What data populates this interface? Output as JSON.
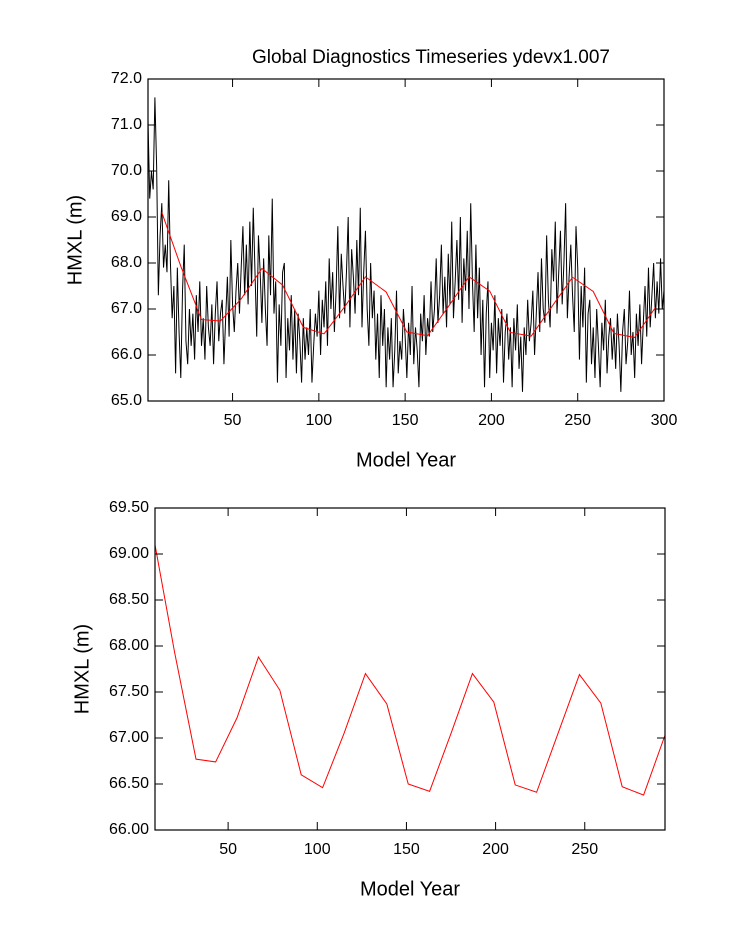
{
  "chart_data": [
    {
      "type": "line",
      "title": "Global Diagnostics Timeseries ydevx1.007",
      "xlabel": "Model Year",
      "ylabel": "HMXL (m)",
      "xlim": [
        1,
        300
      ],
      "xticks": [
        50,
        100,
        150,
        200,
        250,
        300
      ],
      "ylim": [
        65,
        72
      ],
      "yticks": [
        {
          "value": 65,
          "label": "65.0"
        },
        {
          "value": 66,
          "label": "66.0"
        },
        {
          "value": 67,
          "label": "67.0"
        },
        {
          "value": 68,
          "label": "68.0"
        },
        {
          "value": 69,
          "label": "69.0"
        },
        {
          "value": 70,
          "label": "70.0"
        },
        {
          "value": 71,
          "label": "71.0"
        },
        {
          "value": 72,
          "label": "72.0"
        }
      ],
      "x": [
        1,
        2,
        3,
        4,
        5,
        6,
        7,
        8,
        9,
        10,
        11,
        12,
        13,
        14,
        15,
        16,
        17,
        18,
        19,
        20,
        21,
        22,
        23,
        24,
        25,
        26,
        27,
        28,
        29,
        30,
        31,
        32,
        33,
        34,
        35,
        36,
        37,
        38,
        39,
        40,
        41,
        42,
        43,
        44,
        45,
        46,
        47,
        48,
        49,
        50,
        51,
        52,
        53,
        54,
        55,
        56,
        57,
        58,
        59,
        60,
        61,
        62,
        63,
        64,
        65,
        66,
        67,
        68,
        69,
        70,
        71,
        72,
        73,
        74,
        75,
        76,
        77,
        78,
        79,
        80,
        81,
        82,
        83,
        84,
        85,
        86,
        87,
        88,
        89,
        90,
        91,
        92,
        93,
        94,
        95,
        96,
        97,
        98,
        99,
        100,
        101,
        102,
        103,
        104,
        105,
        106,
        107,
        108,
        109,
        110,
        111,
        112,
        113,
        114,
        115,
        116,
        117,
        118,
        119,
        120,
        121,
        122,
        123,
        124,
        125,
        126,
        127,
        128,
        129,
        130,
        131,
        132,
        133,
        134,
        135,
        136,
        137,
        138,
        139,
        140,
        141,
        142,
        143,
        144,
        145,
        146,
        147,
        148,
        149,
        150,
        151,
        152,
        153,
        154,
        155,
        156,
        157,
        158,
        159,
        160,
        161,
        162,
        163,
        164,
        165,
        166,
        167,
        168,
        169,
        170,
        171,
        172,
        173,
        174,
        175,
        176,
        177,
        178,
        179,
        180,
        181,
        182,
        183,
        184,
        185,
        186,
        187,
        188,
        189,
        190,
        191,
        192,
        193,
        194,
        195,
        196,
        197,
        198,
        199,
        200,
        201,
        202,
        203,
        204,
        205,
        206,
        207,
        208,
        209,
        210,
        211,
        212,
        213,
        214,
        215,
        216,
        217,
        218,
        219,
        220,
        221,
        222,
        223,
        224,
        225,
        226,
        227,
        228,
        229,
        230,
        231,
        232,
        233,
        234,
        235,
        236,
        237,
        238,
        239,
        240,
        241,
        242,
        243,
        244,
        245,
        246,
        247,
        248,
        249,
        250,
        251,
        252,
        253,
        254,
        255,
        256,
        257,
        258,
        259,
        260,
        261,
        262,
        263,
        264,
        265,
        266,
        267,
        268,
        269,
        270,
        271,
        272,
        273,
        274,
        275,
        276,
        277,
        278,
        279,
        280,
        281,
        282,
        283,
        284,
        285,
        286,
        287,
        288,
        289,
        290,
        291,
        292,
        293,
        294,
        295,
        296,
        297,
        298,
        299,
        300
      ],
      "series": [
        {
          "color": "#000000",
          "values": [
            71.1,
            69.4,
            70.0,
            69.6,
            71.6,
            70.1,
            67.3,
            68.6,
            69.3,
            67.9,
            68.4,
            67.8,
            69.8,
            68.0,
            66.8,
            67.5,
            65.6,
            67.9,
            66.5,
            65.5,
            67.4,
            68.4,
            66.3,
            65.8,
            67.0,
            66.2,
            66.9,
            65.9,
            67.3,
            66.5,
            67.6,
            66.2,
            66.8,
            65.9,
            67.5,
            66.6,
            66.2,
            67.1,
            65.8,
            66.9,
            67.6,
            66.3,
            66.9,
            67.2,
            65.8,
            66.8,
            67.7,
            66.4,
            68.5,
            67.1,
            66.5,
            67.4,
            68.0,
            66.9,
            67.9,
            68.8,
            67.3,
            68.4,
            67.1,
            68.9,
            67.5,
            69.2,
            67.8,
            66.4,
            68.6,
            67.8,
            66.7,
            68.1,
            67.0,
            66.2,
            68.6,
            67.3,
            69.4,
            66.9,
            67.6,
            65.4,
            67.1,
            66.2,
            67.8,
            68.0,
            65.5,
            66.8,
            66.1,
            67.3,
            65.9,
            67.0,
            65.6,
            66.9,
            66.3,
            65.4,
            66.8,
            65.9,
            66.6,
            66.0,
            67.0,
            65.4,
            66.2,
            66.9,
            66.4,
            67.4,
            66.0,
            67.2,
            66.6,
            67.6,
            66.2,
            68.1,
            67.0,
            67.8,
            66.5,
            67.4,
            68.8,
            66.8,
            68.2,
            67.5,
            66.9,
            67.8,
            69.0,
            66.6,
            68.3,
            67.7,
            66.9,
            68.5,
            67.3,
            69.2,
            66.6,
            67.8,
            68.7,
            67.0,
            66.2,
            68.0,
            66.8,
            67.4,
            65.9,
            66.9,
            65.5,
            67.3,
            66.2,
            67.0,
            65.3,
            66.6,
            65.9,
            66.8,
            65.3,
            66.1,
            67.4,
            65.6,
            66.3,
            65.9,
            67.0,
            66.4,
            65.5,
            66.7,
            66.0,
            67.5,
            65.8,
            66.6,
            66.1,
            65.3,
            66.9,
            66.3,
            67.3,
            66.0,
            66.8,
            66.4,
            67.6,
            66.5,
            67.0,
            68.1,
            66.7,
            67.3,
            68.4,
            66.9,
            67.7,
            66.6,
            68.2,
            67.1,
            68.9,
            66.8,
            67.6,
            68.5,
            67.2,
            69.0,
            66.7,
            68.1,
            67.4,
            68.7,
            67.0,
            69.3,
            67.6,
            66.5,
            68.4,
            66.8,
            67.9,
            66.0,
            67.2,
            65.3,
            66.9,
            67.6,
            65.5,
            66.7,
            66.1,
            67.3,
            65.6,
            66.8,
            66.2,
            67.0,
            65.4,
            66.5,
            66.9,
            65.9,
            66.6,
            65.3,
            66.8,
            66.1,
            67.1,
            65.7,
            66.4,
            65.2,
            66.6,
            66.0,
            67.2,
            66.3,
            66.7,
            67.4,
            66.0,
            66.9,
            67.8,
            66.5,
            68.1,
            67.0,
            66.7,
            68.6,
            67.2,
            66.6,
            68.3,
            67.6,
            68.9,
            66.9,
            67.8,
            68.7,
            67.1,
            68.0,
            69.3,
            66.8,
            67.7,
            68.4,
            67.3,
            66.5,
            68.8,
            67.9,
            65.9,
            67.5,
            66.6,
            67.9,
            65.4,
            66.9,
            67.2,
            65.8,
            66.6,
            65.5,
            67.0,
            66.2,
            65.3,
            66.7,
            66.1,
            67.2,
            65.6,
            66.4,
            66.8,
            65.9,
            66.6,
            65.7,
            66.9,
            66.2,
            65.2,
            66.5,
            67.0,
            65.8,
            66.3,
            67.4,
            66.0,
            66.5,
            65.5,
            66.9,
            66.2,
            67.1,
            65.8,
            66.7,
            67.5,
            66.4,
            67.9,
            66.6,
            67.3,
            68.0,
            66.8,
            67.6,
            66.9,
            68.1,
            67.0,
            67.4
          ]
        },
        {
          "color": "#ff0000",
          "x": [
            9,
            20,
            32,
            43,
            55,
            67,
            79,
            91,
            103,
            115,
            127,
            139,
            151,
            163,
            175,
            187,
            199,
            211,
            223,
            235,
            247,
            259,
            271,
            283,
            295
          ],
          "values": [
            69.1,
            67.93,
            66.77,
            66.74,
            67.22,
            67.88,
            67.52,
            66.6,
            66.46,
            67.05,
            67.7,
            67.37,
            66.5,
            66.42,
            67.05,
            67.7,
            67.39,
            66.49,
            66.41,
            67.05,
            67.69,
            67.38,
            66.47,
            66.38,
            67.03
          ]
        }
      ]
    },
    {
      "type": "line",
      "xlabel": "Model Year",
      "ylabel": "HMXL (m)",
      "xlim": [
        9,
        295
      ],
      "xticks": [
        50,
        100,
        150,
        200,
        250
      ],
      "ylim": [
        66,
        69.5
      ],
      "yticks": [
        {
          "value": 66,
          "label": "66.00"
        },
        {
          "value": 66.5,
          "label": "66.50"
        },
        {
          "value": 67,
          "label": "67.00"
        },
        {
          "value": 67.5,
          "label": "67.50"
        },
        {
          "value": 68,
          "label": "68.00"
        },
        {
          "value": 68.5,
          "label": "68.50"
        },
        {
          "value": 69,
          "label": "69.00"
        },
        {
          "value": 69.5,
          "label": "69.50"
        }
      ],
      "series": [
        {
          "color": "#ff0000",
          "x": [
            9,
            20,
            32,
            43,
            55,
            67,
            79,
            91,
            103,
            115,
            127,
            139,
            151,
            163,
            175,
            187,
            199,
            211,
            223,
            235,
            247,
            259,
            271,
            283,
            295
          ],
          "values": [
            69.1,
            67.93,
            66.77,
            66.74,
            67.22,
            67.88,
            67.52,
            66.6,
            66.46,
            67.05,
            67.7,
            67.37,
            66.5,
            66.42,
            67.05,
            67.7,
            67.39,
            66.49,
            66.41,
            67.05,
            67.69,
            67.38,
            66.47,
            66.38,
            67.03
          ]
        }
      ]
    }
  ]
}
